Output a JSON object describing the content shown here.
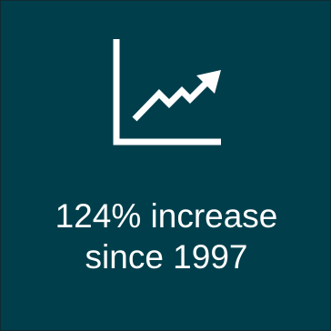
{
  "tile": {
    "background_color": "#003e4b",
    "foreground_color": "#ffffff",
    "icon": "line-chart-trending-up-icon",
    "caption_line_1": "124% increase",
    "caption_line_2": "since 1997"
  }
}
